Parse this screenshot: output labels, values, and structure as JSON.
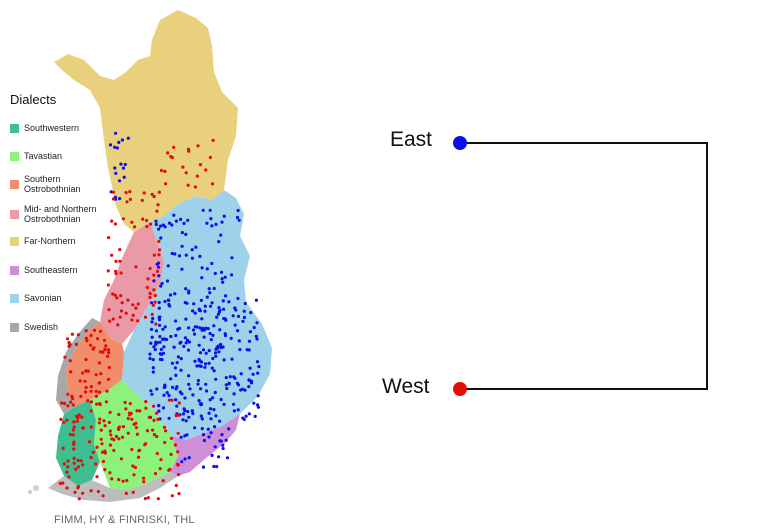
{
  "legend": {
    "title": "Dialects",
    "items": [
      {
        "label": "Southwestern",
        "color": "#3fbf8f"
      },
      {
        "label": "Tavastian",
        "color": "#8cf27a"
      },
      {
        "label": "Southern\nOstrobothnian",
        "color": "#f28d6b"
      },
      {
        "label": "Mid- and Northern\nOstrobothnian",
        "color": "#e99aa6"
      },
      {
        "label": "Far-Northern",
        "color": "#e8d07c"
      },
      {
        "label": "Southeastern",
        "color": "#cf8ed8"
      },
      {
        "label": "Savonian",
        "color": "#9ed1ea"
      },
      {
        "label": "Swedish",
        "color": "#a8a8a8"
      }
    ]
  },
  "credit": "FIMM, HY & FINRISKI, THL",
  "tree": {
    "leaves": [
      {
        "label": "East",
        "color": "#0a10e6"
      },
      {
        "label": "West",
        "color": "#e60a0a"
      }
    ],
    "line_color": "#111111"
  },
  "dots": {
    "east_color": "#0a10e6",
    "west_color": "#e60a0a"
  }
}
